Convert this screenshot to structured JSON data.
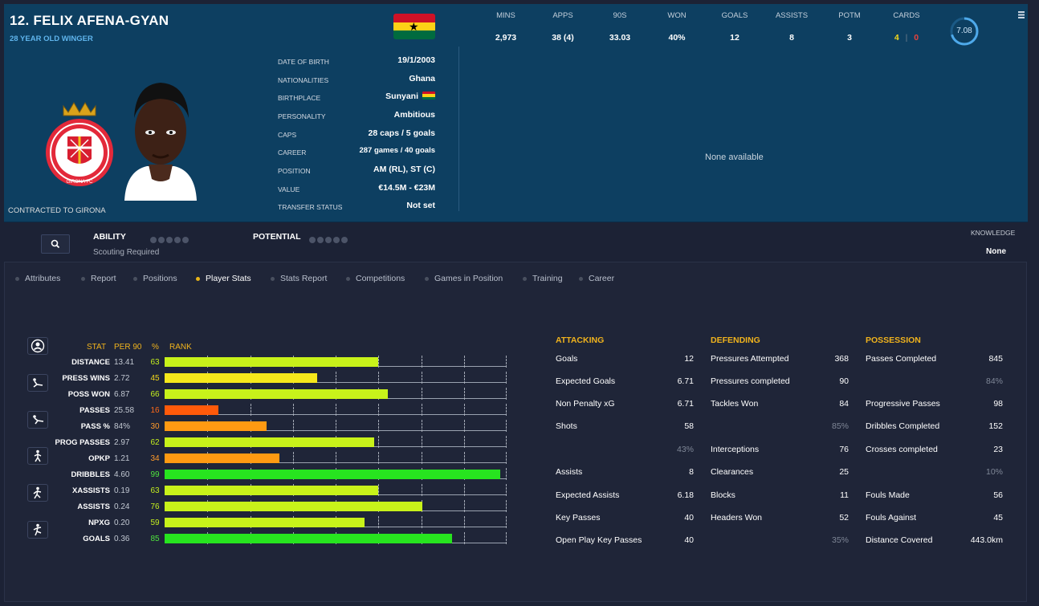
{
  "header": {
    "name": "12. FELIX AFENA-GYAN",
    "subtitle": "28 YEAR OLD WINGER",
    "contract": "CONTRACTED TO GIRONA",
    "club_crest_text": "GIRONA FC",
    "info": [
      {
        "label": "DATE OF BIRTH",
        "value": "19/1/2003"
      },
      {
        "label": "NATIONALITIES",
        "value": "Ghana"
      },
      {
        "label": "BIRTHPLACE",
        "value": "Sunyani",
        "flag": true
      },
      {
        "label": "PERSONALITY",
        "value": "Ambitious"
      },
      {
        "label": "CAPS",
        "value": "28 caps / 5 goals"
      },
      {
        "label": "CAREER",
        "value": "287 games /  40  goals"
      },
      {
        "label": "POSITION",
        "value": "AM (RL), ST (C)"
      },
      {
        "label": "VALUE",
        "value": "€14.5M - €23M"
      },
      {
        "label": "TRANSFER STATUS",
        "value": "Not set"
      }
    ],
    "stats": [
      {
        "label": "MINS",
        "value": "2,973"
      },
      {
        "label": "APPS",
        "value": "38 (4)"
      },
      {
        "label": "90S",
        "value": "33.03"
      },
      {
        "label": "WON",
        "value": "40%"
      },
      {
        "label": "GOALS",
        "value": "12"
      },
      {
        "label": "ASSISTS",
        "value": "8"
      },
      {
        "label": "POTM",
        "value": "3"
      }
    ],
    "cards_label": "CARDS",
    "cards_yellow": "4",
    "cards_red": "0",
    "rating": "7.08",
    "none_available": "None available"
  },
  "colors": {
    "yellow": "#f3d81a",
    "red": "#e8423b",
    "accent": "#f0b31d",
    "ghana_red": "#ce1126",
    "ghana_gold": "#fcd116",
    "ghana_green": "#006b3f"
  },
  "scouting": {
    "ability_label": "ABILITY",
    "potential_label": "POTENTIAL",
    "scouting_text": "Scouting Required",
    "knowledge_label": "KNOWLEDGE",
    "knowledge_value": "None"
  },
  "tabs": [
    "Attributes",
    "Report",
    "Positions",
    "Player Stats",
    "Stats Report",
    "Competitions",
    "Games in Position",
    "Training",
    "Career"
  ],
  "active_tab": "Player Stats",
  "chart_data": {
    "type": "bar",
    "headers": {
      "stat": "STAT",
      "per90": "PER 90",
      "pct": "%",
      "rank": "RANK"
    },
    "categories": [
      "DISTANCE",
      "PRESS WINS",
      "POSS WON",
      "PASSES",
      "PASS %",
      "PROG PASSES",
      "OPKP",
      "DRIBBLES",
      "XASSISTS",
      "ASSISTS",
      "NPXG",
      "GOALS"
    ],
    "per90": [
      "13.41",
      "2.72",
      "6.87",
      "25.58",
      "84%",
      "2.97",
      "1.21",
      "4.60",
      "0.19",
      "0.24",
      "0.20",
      "0.36"
    ],
    "values": [
      63,
      45,
      66,
      16,
      30,
      62,
      34,
      99,
      63,
      76,
      59,
      85
    ],
    "xlim": [
      0,
      100
    ]
  },
  "side_icons": [
    "profile-icon",
    "tackle-icon",
    "slide-tackle-icon",
    "pass-icon",
    "dribble-icon",
    "shoot-icon"
  ],
  "attacking": {
    "title": "ATTACKING",
    "rows": [
      {
        "label": "Goals",
        "value": "12"
      },
      {
        "label": "Expected Goals",
        "value": "6.71"
      },
      {
        "label": "Non Penalty xG",
        "value": "6.71"
      },
      {
        "label": "Shots",
        "value": "58"
      },
      {
        "label": "",
        "value": "43%",
        "dim": true
      },
      {
        "label": "Assists",
        "value": "8"
      },
      {
        "label": "Expected Assists",
        "value": "6.18"
      },
      {
        "label": "Key Passes",
        "value": "40"
      },
      {
        "label": "Open Play Key Passes",
        "value": "40"
      }
    ]
  },
  "defending": {
    "title": "DEFENDING",
    "rows": [
      {
        "label": "Pressures Attempted",
        "value": "368"
      },
      {
        "label": "Pressures completed",
        "value": "90"
      },
      {
        "label": "Tackles Won",
        "value": "84"
      },
      {
        "label": "",
        "value": "85%",
        "dim": true
      },
      {
        "label": "Interceptions",
        "value": "76"
      },
      {
        "label": "Clearances",
        "value": "25"
      },
      {
        "label": "Blocks",
        "value": "11"
      },
      {
        "label": "Headers Won",
        "value": "52"
      },
      {
        "label": "",
        "value": "35%",
        "dim": true
      }
    ]
  },
  "possession": {
    "title": "POSSESSION",
    "rows": [
      {
        "label": "Passes Completed",
        "value": "845"
      },
      {
        "label": "",
        "value": "84%",
        "dim": true
      },
      {
        "label": "Progressive Passes",
        "value": "98"
      },
      {
        "label": "Dribbles Completed",
        "value": "152"
      },
      {
        "label": "Crosses completed",
        "value": "23"
      },
      {
        "label": "",
        "value": "10%",
        "dim": true
      },
      {
        "label": "Fouls Made",
        "value": "56"
      },
      {
        "label": "Fouls Against",
        "value": "45"
      },
      {
        "label": "Distance Covered",
        "value": "443.0km"
      }
    ]
  }
}
